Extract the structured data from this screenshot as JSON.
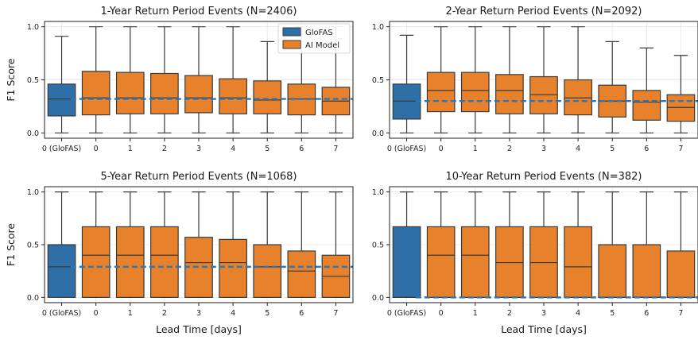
{
  "colors": {
    "glofas": "#2e6fa7",
    "ai_model": "#e8812b",
    "median_line": "#3a3a3a",
    "baseline": "#2e77b4",
    "grid": "#e6e6e6"
  },
  "legend": {
    "glofas": "GloFAS",
    "ai_model": "AI Model",
    "placement": "top-right of first panel"
  },
  "chart_data": [
    {
      "type": "box",
      "title": "1-Year Return Period Events (N=2406)",
      "ylabel": "F1 Score",
      "xlabel": "",
      "categories": [
        "0 (GloFAS)",
        "0",
        "1",
        "2",
        "3",
        "4",
        "5",
        "6",
        "7"
      ],
      "yticks": [
        "0.0",
        "0.5",
        "1.0"
      ],
      "ylim": [
        -0.05,
        1.05
      ],
      "baseline": 0.32,
      "grid": true,
      "boxes": [
        {
          "whislo": 0.0,
          "q1": 0.16,
          "med": 0.32,
          "q3": 0.46,
          "whishi": 0.91
        },
        {
          "whislo": 0.0,
          "q1": 0.17,
          "med": 0.33,
          "q3": 0.58,
          "whishi": 1.0
        },
        {
          "whislo": 0.0,
          "q1": 0.18,
          "med": 0.33,
          "q3": 0.57,
          "whishi": 1.0
        },
        {
          "whislo": 0.0,
          "q1": 0.18,
          "med": 0.33,
          "q3": 0.56,
          "whishi": 1.0
        },
        {
          "whislo": 0.0,
          "q1": 0.19,
          "med": 0.33,
          "q3": 0.54,
          "whishi": 1.0
        },
        {
          "whislo": 0.0,
          "q1": 0.18,
          "med": 0.33,
          "q3": 0.51,
          "whishi": 1.0
        },
        {
          "whislo": 0.0,
          "q1": 0.18,
          "med": 0.31,
          "q3": 0.49,
          "whishi": 0.86
        },
        {
          "whislo": 0.0,
          "q1": 0.17,
          "med": 0.32,
          "q3": 0.46,
          "whishi": 1.0
        },
        {
          "whislo": 0.0,
          "q1": 0.17,
          "med": 0.3,
          "q3": 0.43,
          "whishi": 1.0
        }
      ]
    },
    {
      "type": "box",
      "title": "2-Year Return Period Events (N=2092)",
      "ylabel": "",
      "xlabel": "",
      "categories": [
        "0 (GloFAS)",
        "0",
        "1",
        "2",
        "3",
        "4",
        "5",
        "6",
        "7"
      ],
      "yticks": [
        "0.0",
        "0.5",
        "1.0"
      ],
      "ylim": [
        -0.05,
        1.05
      ],
      "baseline": 0.3,
      "grid": true,
      "boxes": [
        {
          "whislo": 0.0,
          "q1": 0.13,
          "med": 0.3,
          "q3": 0.46,
          "whishi": 0.92
        },
        {
          "whislo": 0.0,
          "q1": 0.2,
          "med": 0.4,
          "q3": 0.57,
          "whishi": 1.0
        },
        {
          "whislo": 0.0,
          "q1": 0.2,
          "med": 0.4,
          "q3": 0.57,
          "whishi": 1.0
        },
        {
          "whislo": 0.0,
          "q1": 0.18,
          "med": 0.4,
          "q3": 0.55,
          "whishi": 1.0
        },
        {
          "whislo": 0.0,
          "q1": 0.18,
          "med": 0.36,
          "q3": 0.53,
          "whishi": 1.0
        },
        {
          "whislo": 0.0,
          "q1": 0.17,
          "med": 0.33,
          "q3": 0.5,
          "whishi": 1.0
        },
        {
          "whislo": 0.0,
          "q1": 0.15,
          "med": 0.3,
          "q3": 0.45,
          "whishi": 0.86
        },
        {
          "whislo": 0.0,
          "q1": 0.12,
          "med": 0.29,
          "q3": 0.4,
          "whishi": 0.8
        },
        {
          "whislo": 0.0,
          "q1": 0.11,
          "med": 0.24,
          "q3": 0.36,
          "whishi": 0.73
        }
      ]
    },
    {
      "type": "box",
      "title": "5-Year Return Period Events (N=1068)",
      "ylabel": "F1 Score",
      "xlabel": "Lead Time [days]",
      "categories": [
        "0 (GloFAS)",
        "0",
        "1",
        "2",
        "3",
        "4",
        "5",
        "6",
        "7"
      ],
      "yticks": [
        "0.0",
        "0.5",
        "1.0"
      ],
      "ylim": [
        -0.05,
        1.05
      ],
      "baseline": 0.29,
      "grid": true,
      "boxes": [
        {
          "whislo": 0.0,
          "q1": 0.0,
          "med": 0.29,
          "q3": 0.5,
          "whishi": 1.0
        },
        {
          "whislo": 0.0,
          "q1": 0.0,
          "med": 0.4,
          "q3": 0.67,
          "whishi": 1.0
        },
        {
          "whislo": 0.0,
          "q1": 0.0,
          "med": 0.4,
          "q3": 0.67,
          "whishi": 1.0
        },
        {
          "whislo": 0.0,
          "q1": 0.0,
          "med": 0.4,
          "q3": 0.67,
          "whishi": 1.0
        },
        {
          "whislo": 0.0,
          "q1": 0.0,
          "med": 0.33,
          "q3": 0.57,
          "whishi": 1.0
        },
        {
          "whislo": 0.0,
          "q1": 0.0,
          "med": 0.33,
          "q3": 0.55,
          "whishi": 1.0
        },
        {
          "whislo": 0.0,
          "q1": 0.0,
          "med": 0.29,
          "q3": 0.5,
          "whishi": 1.0
        },
        {
          "whislo": 0.0,
          "q1": 0.0,
          "med": 0.25,
          "q3": 0.44,
          "whishi": 1.0
        },
        {
          "whislo": 0.0,
          "q1": 0.0,
          "med": 0.2,
          "q3": 0.4,
          "whishi": 1.0
        }
      ]
    },
    {
      "type": "box",
      "title": "10-Year Return Period Events (N=382)",
      "ylabel": "",
      "xlabel": "Lead Time [days]",
      "categories": [
        "0 (GloFAS)",
        "0",
        "1",
        "2",
        "3",
        "4",
        "5",
        "6",
        "7"
      ],
      "yticks": [
        "0.0",
        "0.5",
        "1.0"
      ],
      "ylim": [
        -0.05,
        1.05
      ],
      "baseline": 0.0,
      "grid": true,
      "boxes": [
        {
          "whislo": 0.0,
          "q1": 0.0,
          "med": 0.0,
          "q3": 0.67,
          "whishi": 1.0
        },
        {
          "whislo": 0.0,
          "q1": 0.0,
          "med": 0.4,
          "q3": 0.67,
          "whishi": 1.0
        },
        {
          "whislo": 0.0,
          "q1": 0.0,
          "med": 0.4,
          "q3": 0.67,
          "whishi": 1.0
        },
        {
          "whislo": 0.0,
          "q1": 0.0,
          "med": 0.33,
          "q3": 0.67,
          "whishi": 1.0
        },
        {
          "whislo": 0.0,
          "q1": 0.0,
          "med": 0.33,
          "q3": 0.67,
          "whishi": 1.0
        },
        {
          "whislo": 0.0,
          "q1": 0.0,
          "med": 0.29,
          "q3": 0.67,
          "whishi": 1.0
        },
        {
          "whislo": 0.0,
          "q1": 0.0,
          "med": 0.0,
          "q3": 0.5,
          "whishi": 1.0
        },
        {
          "whislo": 0.0,
          "q1": 0.0,
          "med": 0.0,
          "q3": 0.5,
          "whishi": 1.0
        },
        {
          "whislo": 0.0,
          "q1": 0.0,
          "med": 0.0,
          "q3": 0.44,
          "whishi": 1.0
        }
      ]
    }
  ]
}
